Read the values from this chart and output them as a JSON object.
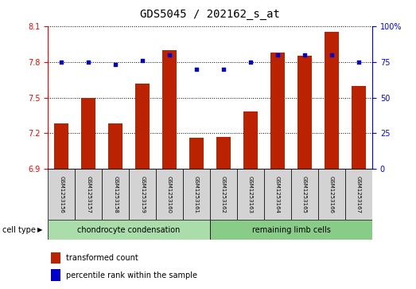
{
  "title": "GDS5045 / 202162_s_at",
  "samples": [
    "GSM1253156",
    "GSM1253157",
    "GSM1253158",
    "GSM1253159",
    "GSM1253160",
    "GSM1253161",
    "GSM1253162",
    "GSM1253163",
    "GSM1253164",
    "GSM1253165",
    "GSM1253166",
    "GSM1253167"
  ],
  "red_values": [
    7.28,
    7.5,
    7.28,
    7.62,
    7.9,
    7.16,
    7.17,
    7.38,
    7.88,
    7.85,
    8.05,
    7.6
  ],
  "blue_values": [
    75,
    75,
    73,
    76,
    80,
    70,
    70,
    75,
    80,
    80,
    80,
    75
  ],
  "ylim_left": [
    6.9,
    8.1
  ],
  "ylim_right": [
    0,
    100
  ],
  "yticks_left": [
    6.9,
    7.2,
    7.5,
    7.8,
    8.1
  ],
  "yticks_right": [
    0,
    25,
    50,
    75,
    100
  ],
  "bar_color": "#bb2200",
  "dot_color": "#0000cc",
  "bar_bottom": 6.9,
  "groups": [
    {
      "label": "chondrocyte condensation",
      "start": 0,
      "end": 5,
      "color": "#aaddaa"
    },
    {
      "label": "remaining limb cells",
      "start": 6,
      "end": 11,
      "color": "#88cc88"
    }
  ],
  "cell_type_label": "cell type",
  "legend_items": [
    {
      "label": "transformed count",
      "color": "#bb2200"
    },
    {
      "label": "percentile rank within the sample",
      "color": "#0000cc"
    }
  ],
  "bg_color": "#d3d3d3",
  "plot_bg": "#ffffff",
  "title_fontsize": 10,
  "tick_fontsize": 7,
  "sample_fontsize": 5,
  "group_fontsize": 7,
  "legend_fontsize": 7
}
